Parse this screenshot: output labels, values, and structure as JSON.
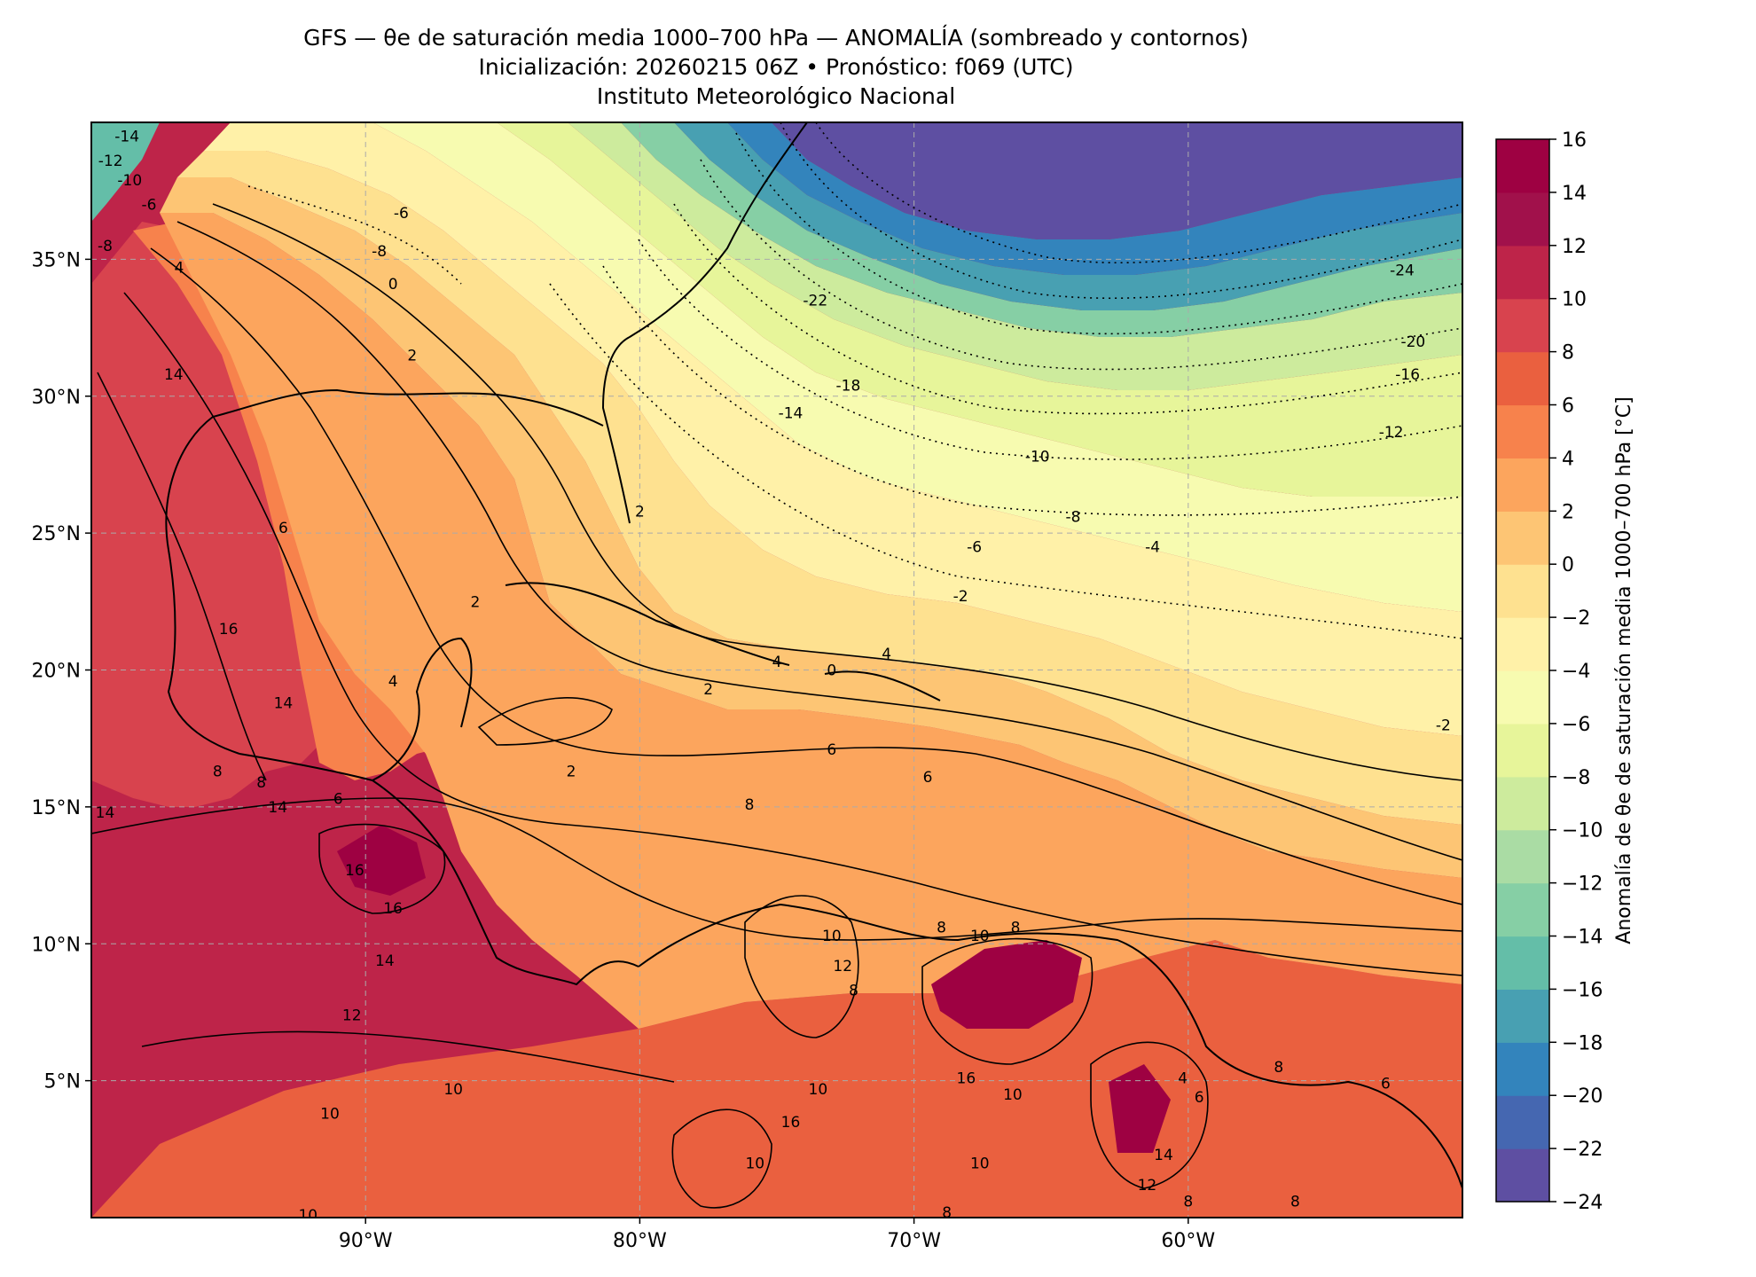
{
  "title": {
    "line1": "GFS — θe de saturación media 1000–700 hPa — ANOMALÍA (sombreado y contornos)",
    "line2": "Inicialización: 20260215 06Z   •   Pronóstico: f069 (UTC)",
    "line3": "Instituto Meteorológico Nacional"
  },
  "map": {
    "extent": {
      "lon_min": -100,
      "lon_max": -50,
      "lat_min": 0,
      "lat_max": 40
    },
    "lon_ticks": [
      {
        "lon": -90,
        "label": "90°W"
      },
      {
        "lon": -80,
        "label": "80°W"
      },
      {
        "lon": -70,
        "label": "70°W"
      },
      {
        "lon": -60,
        "label": "60°W"
      }
    ],
    "lat_ticks": [
      {
        "lat": 35,
        "label": "35°N"
      },
      {
        "lat": 30,
        "label": "30°N"
      },
      {
        "lat": 25,
        "label": "25°N"
      },
      {
        "lat": 20,
        "label": "20°N"
      },
      {
        "lat": 15,
        "label": "15°N"
      },
      {
        "lat": 10,
        "label": "10°N"
      },
      {
        "lat": 5,
        "label": "5°N"
      }
    ],
    "contour_labels": [
      {
        "lon": -65.5,
        "lat": 27.8,
        "text": "-10"
      },
      {
        "lon": -64.2,
        "lat": 25.6,
        "text": "-8"
      },
      {
        "lon": -67.8,
        "lat": 24.5,
        "text": "-6"
      },
      {
        "lon": -61.3,
        "lat": 24.5,
        "text": "-4"
      },
      {
        "lon": -68.3,
        "lat": 22.7,
        "text": "-2"
      },
      {
        "lon": -74.5,
        "lat": 29.4,
        "text": "-14"
      },
      {
        "lon": -72.4,
        "lat": 30.4,
        "text": "-18"
      },
      {
        "lon": -52.0,
        "lat": 30.8,
        "text": "-16"
      },
      {
        "lon": -51.8,
        "lat": 32.0,
        "text": "-20"
      },
      {
        "lon": -52.6,
        "lat": 28.7,
        "text": "-12"
      },
      {
        "lon": -52.2,
        "lat": 34.6,
        "text": "-24"
      },
      {
        "lon": -73.6,
        "lat": 33.5,
        "text": "-22"
      },
      {
        "lon": -88.7,
        "lat": 36.7,
        "text": "-6"
      },
      {
        "lon": -89.5,
        "lat": 35.3,
        "text": "-8"
      },
      {
        "lon": -89.0,
        "lat": 34.1,
        "text": "0"
      },
      {
        "lon": -88.3,
        "lat": 31.5,
        "text": "2"
      },
      {
        "lon": -93.0,
        "lat": 25.2,
        "text": "6"
      },
      {
        "lon": -95.0,
        "lat": 21.5,
        "text": "16"
      },
      {
        "lon": -93.0,
        "lat": 18.8,
        "text": "14"
      },
      {
        "lon": -89.0,
        "lat": 19.6,
        "text": "4"
      },
      {
        "lon": -86.0,
        "lat": 22.5,
        "text": "2"
      },
      {
        "lon": -80.0,
        "lat": 25.8,
        "text": "2"
      },
      {
        "lon": -82.5,
        "lat": 16.3,
        "text": "2"
      },
      {
        "lon": -77.5,
        "lat": 19.3,
        "text": "2"
      },
      {
        "lon": -71.0,
        "lat": 20.6,
        "text": "4"
      },
      {
        "lon": -73.0,
        "lat": 20.0,
        "text": "0"
      },
      {
        "lon": -75.0,
        "lat": 20.3,
        "text": "4"
      },
      {
        "lon": -73.0,
        "lat": 17.1,
        "text": "6"
      },
      {
        "lon": -76.0,
        "lat": 15.1,
        "text": "8"
      },
      {
        "lon": -69.5,
        "lat": 16.1,
        "text": "6"
      },
      {
        "lon": -96.8,
        "lat": 34.7,
        "text": "4"
      },
      {
        "lon": -97.0,
        "lat": 30.8,
        "text": "14"
      },
      {
        "lon": -99.5,
        "lat": 14.8,
        "text": "14"
      },
      {
        "lon": -93.2,
        "lat": 15.0,
        "text": "14"
      },
      {
        "lon": -90.4,
        "lat": 12.7,
        "text": "16"
      },
      {
        "lon": -89.0,
        "lat": 11.3,
        "text": "16"
      },
      {
        "lon": -91.0,
        "lat": 15.3,
        "text": "6"
      },
      {
        "lon": -95.4,
        "lat": 16.3,
        "text": "8"
      },
      {
        "lon": -93.8,
        "lat": 15.9,
        "text": "8"
      },
      {
        "lon": -89.3,
        "lat": 9.4,
        "text": "14"
      },
      {
        "lon": -90.5,
        "lat": 7.4,
        "text": "12"
      },
      {
        "lon": -86.8,
        "lat": 4.7,
        "text": "10"
      },
      {
        "lon": -91.3,
        "lat": 3.8,
        "text": "10"
      },
      {
        "lon": -92.1,
        "lat": 0.1,
        "text": "10"
      },
      {
        "lon": -73.0,
        "lat": 10.3,
        "text": "10"
      },
      {
        "lon": -72.6,
        "lat": 9.2,
        "text": "12"
      },
      {
        "lon": -72.2,
        "lat": 8.3,
        "text": "8"
      },
      {
        "lon": -69.0,
        "lat": 10.6,
        "text": "8"
      },
      {
        "lon": -67.6,
        "lat": 10.3,
        "text": "10"
      },
      {
        "lon": -66.3,
        "lat": 10.6,
        "text": "8"
      },
      {
        "lon": -73.5,
        "lat": 4.7,
        "text": "10"
      },
      {
        "lon": -74.5,
        "lat": 3.5,
        "text": "16"
      },
      {
        "lon": -75.8,
        "lat": 2.0,
        "text": "10"
      },
      {
        "lon": -68.1,
        "lat": 5.1,
        "text": "16"
      },
      {
        "lon": -66.4,
        "lat": 4.5,
        "text": "10"
      },
      {
        "lon": -60.2,
        "lat": 5.1,
        "text": "4"
      },
      {
        "lon": -59.6,
        "lat": 4.4,
        "text": "6"
      },
      {
        "lon": -56.7,
        "lat": 5.5,
        "text": "8"
      },
      {
        "lon": -52.8,
        "lat": 4.9,
        "text": "6"
      },
      {
        "lon": -60.9,
        "lat": 2.3,
        "text": "14"
      },
      {
        "lon": -61.5,
        "lat": 1.2,
        "text": "12"
      },
      {
        "lon": -67.6,
        "lat": 2.0,
        "text": "10"
      },
      {
        "lon": -68.8,
        "lat": 0.2,
        "text": "8"
      },
      {
        "lon": -60.0,
        "lat": 0.6,
        "text": "8"
      },
      {
        "lon": -56.1,
        "lat": 0.6,
        "text": "8"
      },
      {
        "lon": -50.7,
        "lat": 18.0,
        "text": "-2"
      },
      {
        "lon": -99.3,
        "lat": 38.6,
        "text": "-12"
      },
      {
        "lon": -98.7,
        "lat": 39.5,
        "text": "-14"
      },
      {
        "lon": -98.6,
        "lat": 37.9,
        "text": "-10"
      },
      {
        "lon": -97.9,
        "lat": 37.0,
        "text": "-6"
      },
      {
        "lon": -99.5,
        "lat": 35.5,
        "text": "-8"
      }
    ]
  },
  "colorbar": {
    "label": "Anomalía de θe de saturación media 1000–700 hPa [°C]",
    "min": -24,
    "max": 16,
    "step": 2,
    "tick_labels": [
      "16",
      "14",
      "12",
      "10",
      "8",
      "6",
      "4",
      "2",
      "0",
      "−2",
      "−4",
      "−6",
      "−8",
      "−10",
      "−12",
      "−14",
      "−16",
      "−18",
      "−20",
      "−22",
      "−24"
    ],
    "colors": [
      "#5e4fa2",
      "#4567b1",
      "#3384bc",
      "#48a0b2",
      "#64bea8",
      "#86cfa5",
      "#aadca4",
      "#cdeb9d",
      "#e7f59a",
      "#f7fbb0",
      "#fff1a8",
      "#fee190",
      "#fdc574",
      "#fca55d",
      "#f7824c",
      "#ea603f",
      "#d8434e",
      "#be2449",
      "#a1114b",
      "#9e0142"
    ]
  }
}
